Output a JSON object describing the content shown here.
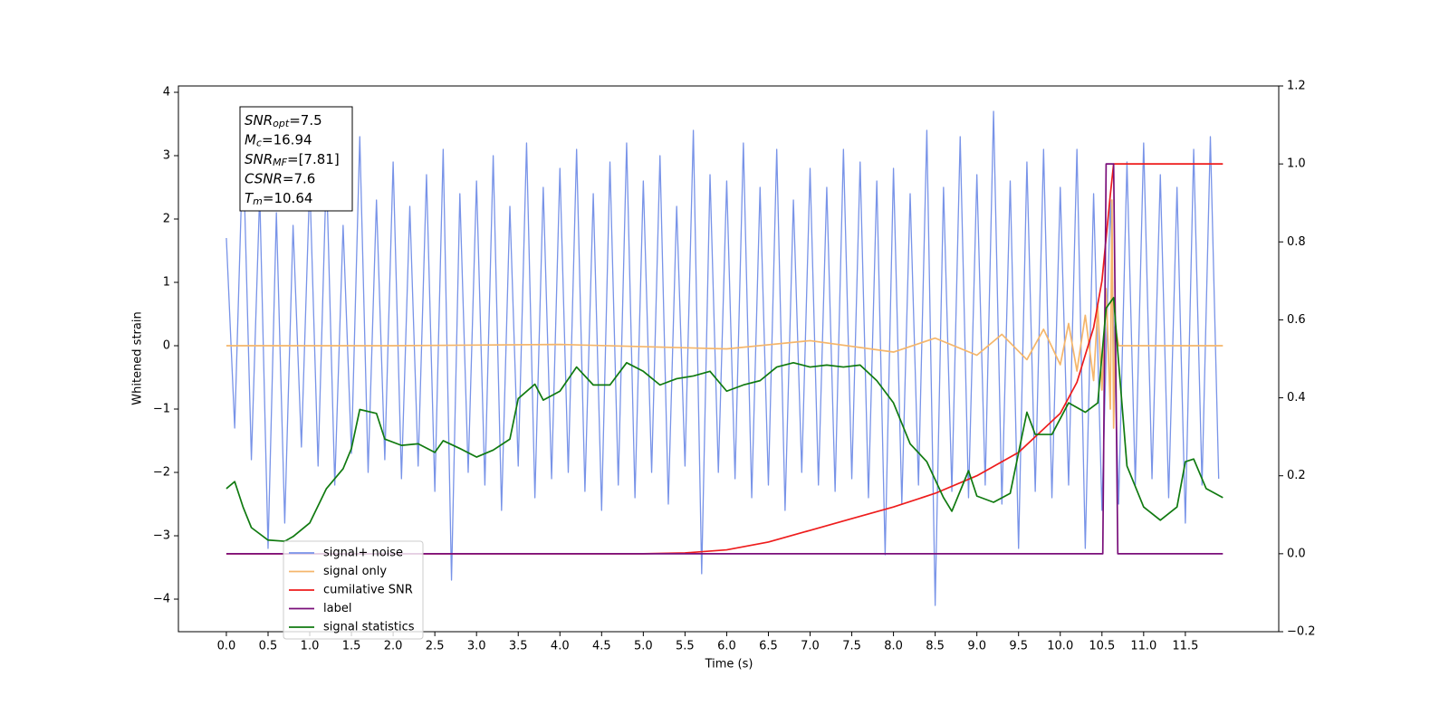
{
  "chart_data": {
    "type": "line",
    "xlabel": "Time (s)",
    "ylabel": "Whitened strain",
    "xlim": [
      -0.575,
      12.62
    ],
    "ylim": [
      -4.514,
      4.1
    ],
    "y2lim": [
      -0.2,
      1.2
    ],
    "xticks": [
      {
        "value": 0,
        "label": "0.0"
      },
      {
        "value": 0.5,
        "label": "0.5"
      },
      {
        "value": 1,
        "label": "1.0"
      },
      {
        "value": 1.5,
        "label": "1.5"
      },
      {
        "value": 2,
        "label": "2.0"
      },
      {
        "value": 2.5,
        "label": "2.5"
      },
      {
        "value": 3,
        "label": "3.0"
      },
      {
        "value": 3.5,
        "label": "3.5"
      },
      {
        "value": 4,
        "label": "4.0"
      },
      {
        "value": 4.5,
        "label": "4.5"
      },
      {
        "value": 5,
        "label": "5.0"
      },
      {
        "value": 5.5,
        "label": "5.5"
      },
      {
        "value": 6,
        "label": "6.0"
      },
      {
        "value": 6.5,
        "label": "6.5"
      },
      {
        "value": 7,
        "label": "7.0"
      },
      {
        "value": 7.5,
        "label": "7.5"
      },
      {
        "value": 8,
        "label": "8.0"
      },
      {
        "value": 8.5,
        "label": "8.5"
      },
      {
        "value": 9,
        "label": "9.0"
      },
      {
        "value": 9.5,
        "label": "9.5"
      },
      {
        "value": 10,
        "label": "10.0"
      },
      {
        "value": 10.5,
        "label": "10.5"
      },
      {
        "value": 11,
        "label": "11.0"
      },
      {
        "value": 11.5,
        "label": "11.5"
      }
    ],
    "yticks": [
      {
        "value": -4,
        "label": "−4"
      },
      {
        "value": -3,
        "label": "−3"
      },
      {
        "value": -2,
        "label": "−2"
      },
      {
        "value": -1,
        "label": "−1"
      },
      0,
      1,
      2,
      3,
      4
    ],
    "y2ticks": [
      {
        "value": -0.2,
        "label": "−0.2"
      },
      {
        "value": 0,
        "label": "0.0"
      },
      {
        "value": 0.2,
        "label": "0.2"
      },
      {
        "value": 0.4,
        "label": "0.4"
      },
      {
        "value": 0.6,
        "label": "0.6"
      },
      {
        "value": 0.8,
        "label": "0.8"
      },
      {
        "value": 1,
        "label": "1.0"
      },
      {
        "value": 1.2,
        "label": "1.2"
      }
    ],
    "legend": "lower left",
    "annotation": [
      [
        "SNR",
        "opt",
        "=7.5"
      ],
      [
        "M",
        "c",
        "=16.94"
      ],
      [
        "SNR",
        "MF",
        "=[7.81]"
      ],
      [
        "CSNR",
        "=7.6"
      ],
      [
        "T",
        "m",
        "=10.64"
      ]
    ],
    "series": [
      {
        "name": "signal+ noise",
        "color": "#7893e8",
        "x": [
          0.0,
          0.1,
          0.2,
          0.3,
          0.4,
          0.5,
          0.6,
          0.7,
          0.8,
          0.9,
          1.0,
          1.1,
          1.2,
          1.3,
          1.4,
          1.5,
          1.6,
          1.7,
          1.8,
          1.9,
          2.0,
          2.1,
          2.2,
          2.3,
          2.4,
          2.5,
          2.6,
          2.7,
          2.8,
          2.9,
          3.0,
          3.1,
          3.2,
          3.3,
          3.4,
          3.5,
          3.6,
          3.7,
          3.8,
          3.9,
          4.0,
          4.1,
          4.2,
          4.3,
          4.4,
          4.5,
          4.6,
          4.7,
          4.8,
          4.9,
          5.0,
          5.1,
          5.2,
          5.3,
          5.4,
          5.5,
          5.6,
          5.7,
          5.8,
          5.9,
          6.0,
          6.1,
          6.2,
          6.3,
          6.4,
          6.5,
          6.6,
          6.7,
          6.8,
          6.9,
          7.0,
          7.1,
          7.2,
          7.3,
          7.4,
          7.5,
          7.6,
          7.7,
          7.8,
          7.9,
          8.0,
          8.1,
          8.2,
          8.3,
          8.4,
          8.5,
          8.6,
          8.7,
          8.8,
          8.9,
          9.0,
          9.1,
          9.2,
          9.3,
          9.4,
          9.5,
          9.6,
          9.7,
          9.8,
          9.9,
          10.0,
          10.1,
          10.2,
          10.3,
          10.4,
          10.5,
          10.6,
          10.7,
          10.8,
          10.9,
          11.0,
          11.1,
          11.2,
          11.3,
          11.4,
          11.5,
          11.6,
          11.7,
          11.8,
          11.9
        ],
        "values": [
          1.7,
          -1.3,
          3.2,
          -1.8,
          2.4,
          -3.2,
          2.1,
          -2.8,
          1.9,
          -1.6,
          2.6,
          -1.9,
          2.8,
          -2.2,
          1.9,
          -1.7,
          3.3,
          -2.0,
          2.3,
          -1.8,
          2.9,
          -2.1,
          2.2,
          -1.9,
          2.7,
          -2.3,
          3.1,
          -3.7,
          2.4,
          -2.0,
          2.6,
          -2.2,
          3.0,
          -2.6,
          2.2,
          -1.9,
          3.2,
          -2.4,
          2.5,
          -2.1,
          2.8,
          -2.0,
          3.1,
          -2.3,
          2.4,
          -2.6,
          2.9,
          -2.2,
          3.2,
          -2.4,
          2.6,
          -2.0,
          3.0,
          -2.5,
          2.2,
          -1.9,
          3.4,
          -3.6,
          2.7,
          -2.0,
          2.6,
          -2.1,
          3.2,
          -2.4,
          2.5,
          -2.2,
          3.1,
          -2.6,
          2.3,
          -2.0,
          2.8,
          -2.2,
          2.5,
          -2.3,
          3.1,
          -2.1,
          2.9,
          -2.4,
          2.6,
          -3.3,
          2.8,
          -2.5,
          2.4,
          -2.2,
          3.4,
          -4.1,
          2.5,
          -2.3,
          3.3,
          -2.4,
          2.7,
          -2.2,
          3.7,
          -2.5,
          2.6,
          -3.2,
          2.9,
          -2.3,
          3.1,
          -2.4,
          2.5,
          -2.2,
          3.1,
          -3.2,
          2.4,
          -2.6,
          2.3,
          -2.5,
          2.9,
          -2.2,
          3.2,
          -2.1,
          2.7,
          -2.4,
          2.5,
          -2.8,
          3.1,
          -2.2,
          3.3,
          -2.1
        ]
      },
      {
        "name": "signal only",
        "color": "#f5b66b",
        "x": [
          0,
          2,
          4,
          6,
          7,
          8,
          8.5,
          9,
          9.3,
          9.6,
          9.8,
          10,
          10.1,
          10.2,
          10.3,
          10.4,
          10.45,
          10.5,
          10.55,
          10.6,
          10.62,
          10.64,
          10.66,
          10.7,
          11,
          11.95
        ],
        "values": [
          0,
          0,
          0.02,
          -0.05,
          0.08,
          -0.1,
          0.12,
          -0.15,
          0.18,
          -0.22,
          0.26,
          -0.3,
          0.35,
          -0.4,
          0.48,
          -0.55,
          0.62,
          -0.7,
          0.9,
          -1.0,
          2.3,
          -1.3,
          0.3,
          0,
          0,
          0
        ]
      },
      {
        "name": "cumilative SNR",
        "color": "#ee1c1c",
        "axis": "y2",
        "x": [
          0,
          5,
          5.5,
          6,
          6.5,
          7,
          7.5,
          8,
          8.5,
          9,
          9.5,
          10,
          10.2,
          10.4,
          10.5,
          10.6,
          10.64,
          11.95
        ],
        "values": [
          0,
          0,
          0.002,
          0.01,
          0.03,
          0.06,
          0.09,
          0.12,
          0.155,
          0.2,
          0.26,
          0.36,
          0.44,
          0.58,
          0.7,
          0.92,
          1.0,
          1.0
        ]
      },
      {
        "name": "label",
        "color": "#7a0f7a",
        "axis": "y2",
        "x": [
          0,
          10.51,
          10.55,
          10.64,
          10.69,
          11.95
        ],
        "values": [
          0,
          0,
          1,
          1,
          0,
          0
        ]
      },
      {
        "name": "signal statistics",
        "color": "#107a10",
        "axis": "y2",
        "x": [
          0,
          0.1,
          0.2,
          0.3,
          0.5,
          0.7,
          0.8,
          1.0,
          1.2,
          1.4,
          1.5,
          1.6,
          1.8,
          1.9,
          2.1,
          2.3,
          2.5,
          2.6,
          2.8,
          3.0,
          3.2,
          3.4,
          3.5,
          3.7,
          3.8,
          4.0,
          4.2,
          4.4,
          4.6,
          4.8,
          5.0,
          5.2,
          5.4,
          5.6,
          5.8,
          6.0,
          6.2,
          6.4,
          6.6,
          6.8,
          7.0,
          7.2,
          7.4,
          7.6,
          7.8,
          8.0,
          8.2,
          8.4,
          8.6,
          8.7,
          8.9,
          9.0,
          9.2,
          9.4,
          9.6,
          9.7,
          9.9,
          10.1,
          10.3,
          10.45,
          10.55,
          10.64,
          10.7,
          10.8,
          11.0,
          11.2,
          11.4,
          11.5,
          11.6,
          11.75,
          11.95
        ],
        "values": [
          0.167,
          0.185,
          0.12,
          0.067,
          0.035,
          0.032,
          0.044,
          0.079,
          0.167,
          0.218,
          0.27,
          0.37,
          0.36,
          0.294,
          0.278,
          0.282,
          0.26,
          0.29,
          0.27,
          0.248,
          0.266,
          0.294,
          0.398,
          0.435,
          0.394,
          0.417,
          0.479,
          0.433,
          0.433,
          0.49,
          0.468,
          0.433,
          0.449,
          0.456,
          0.468,
          0.417,
          0.433,
          0.444,
          0.479,
          0.49,
          0.479,
          0.484,
          0.479,
          0.484,
          0.444,
          0.387,
          0.282,
          0.236,
          0.144,
          0.109,
          0.213,
          0.148,
          0.132,
          0.155,
          0.363,
          0.306,
          0.306,
          0.387,
          0.363,
          0.387,
          0.63,
          0.657,
          0.49,
          0.225,
          0.12,
          0.086,
          0.12,
          0.236,
          0.243,
          0.167,
          0.144
        ]
      }
    ]
  }
}
